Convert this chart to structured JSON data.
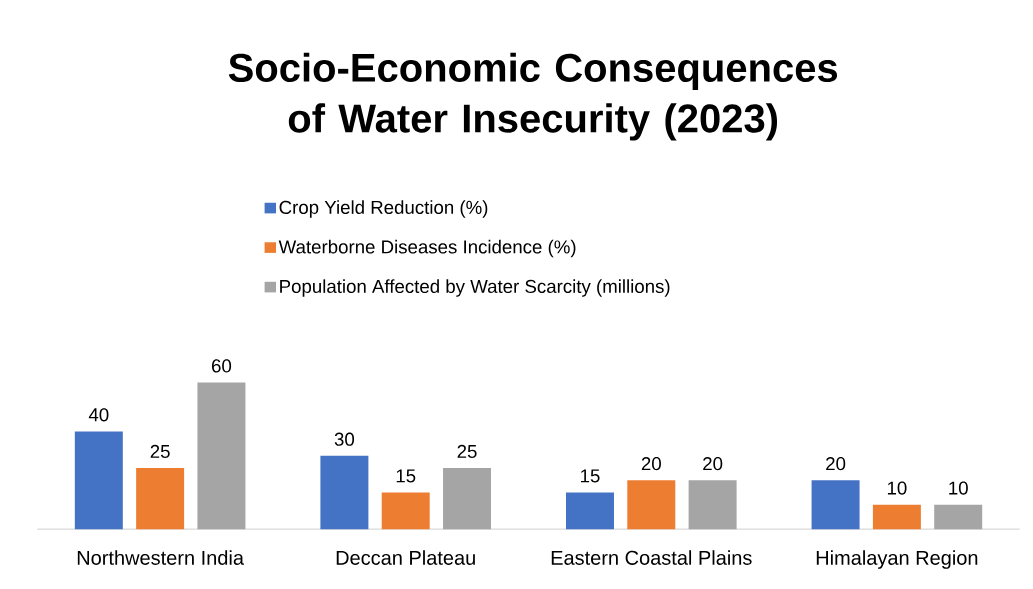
{
  "chart_data": {
    "type": "bar",
    "title": "Socio-Economic Consequences of Water Insecurity (2023)",
    "categories": [
      "Northwestern India",
      "Deccan Plateau",
      "Eastern Coastal Plains",
      "Himalayan Region"
    ],
    "series": [
      {
        "name": "Crop Yield Reduction (%)",
        "color": "#4472c4",
        "values": [
          40,
          30,
          15,
          20
        ]
      },
      {
        "name": "Waterborne Diseases Incidence (%)",
        "color": "#ed7d31",
        "values": [
          25,
          15,
          20,
          10
        ]
      },
      {
        "name": "Population Affected by Water Scarcity (millions)",
        "color": "#a5a5a5",
        "values": [
          60,
          25,
          20,
          10
        ]
      }
    ],
    "data_labels": true,
    "legend": "top"
  }
}
